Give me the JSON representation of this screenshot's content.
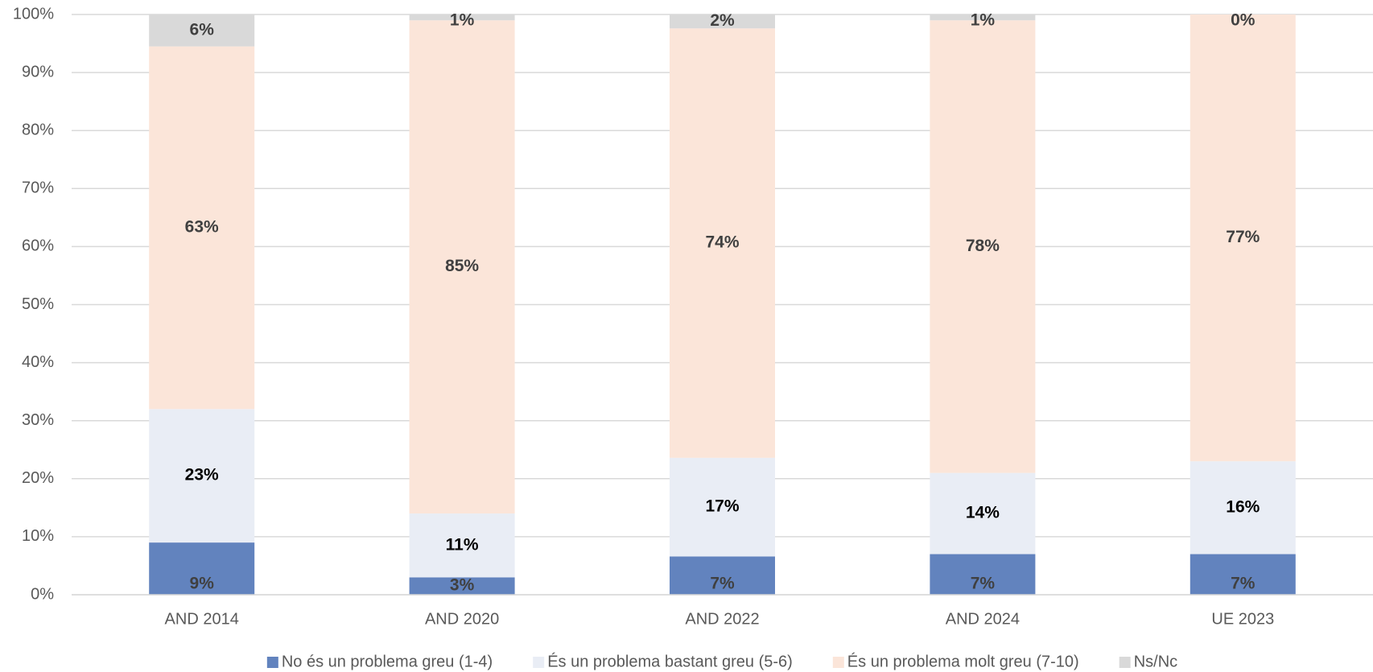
{
  "chart_data": {
    "type": "stacked_bar",
    "categories": [
      "AND 2014",
      "AND 2020",
      "AND 2022",
      "AND 2024",
      "UE 2023"
    ],
    "series": [
      {
        "name": "No és un problema greu (1-4)",
        "color": "#6283be",
        "values": [
          9,
          3,
          6.6,
          7,
          7
        ],
        "value_labels": [
          "9%",
          "3%",
          "7%",
          "7%",
          "7%"
        ]
      },
      {
        "name": "És un problema bastant greu (5-6)",
        "color": "#e9edf5",
        "values": [
          23,
          11,
          17,
          14,
          16
        ],
        "value_labels": [
          "23%",
          "11%",
          "17%",
          "14%",
          "16%"
        ]
      },
      {
        "name": "És un problema molt greu (7-10)",
        "color": "#fbe5d9",
        "values": [
          62.5,
          85,
          74,
          78,
          77
        ],
        "value_labels": [
          "63%",
          "85%",
          "74%",
          "78%",
          "77%"
        ]
      },
      {
        "name": "Ns/Nc",
        "color": "#d9d9d9",
        "values": [
          5.5,
          1,
          2.4,
          1,
          0
        ],
        "value_labels": [
          "6%",
          "1%",
          "2%",
          "1%",
          "0%"
        ]
      }
    ],
    "ylim": [
      0,
      100
    ],
    "yticks": [
      {
        "value": 0,
        "label": "0%"
      },
      {
        "value": 10,
        "label": "10%"
      },
      {
        "value": 20,
        "label": "20%"
      },
      {
        "value": 30,
        "label": "30%"
      },
      {
        "value": 40,
        "label": "40%"
      },
      {
        "value": 50,
        "label": "50%"
      },
      {
        "value": 60,
        "label": "60%"
      },
      {
        "value": 70,
        "label": "70%"
      },
      {
        "value": 80,
        "label": "80%"
      },
      {
        "value": 90,
        "label": "90%"
      },
      {
        "value": 100,
        "label": "100%"
      }
    ],
    "grid": true,
    "legend": "bottom"
  }
}
